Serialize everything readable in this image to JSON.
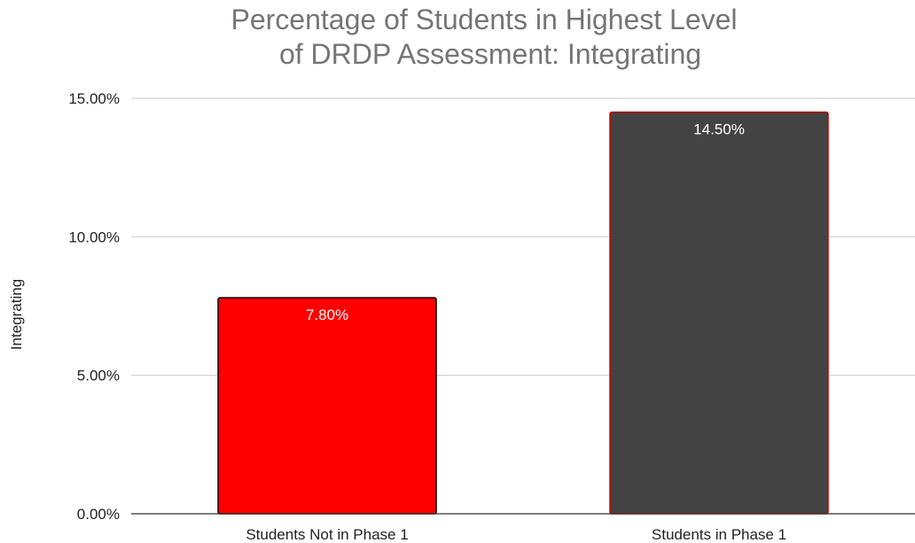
{
  "chart_data": {
    "type": "bar",
    "title_lines": [
      "Percentage of Students in Highest Level",
      "of DRDP Assessment: Integrating"
    ],
    "xlabel": "",
    "ylabel": "Integrating",
    "categories": [
      "Students Not in Phase 1",
      "Students in Phase 1"
    ],
    "values": [
      7.8,
      14.5
    ],
    "data_labels": [
      "7.80%",
      "14.50%"
    ],
    "ylim": [
      0,
      15
    ],
    "yticks": [
      0,
      5,
      10,
      15
    ],
    "ytick_labels": [
      "0.00%",
      "5.00%",
      "10.00%",
      "15.00%"
    ],
    "grid": true,
    "legend": "none",
    "colors": {
      "bars": [
        "#ff0000",
        "#434343"
      ],
      "bar_borders": [
        "#000000",
        "#cc0000"
      ],
      "title": "#757575",
      "grid": "#cccccc",
      "axis": "#333333"
    }
  }
}
